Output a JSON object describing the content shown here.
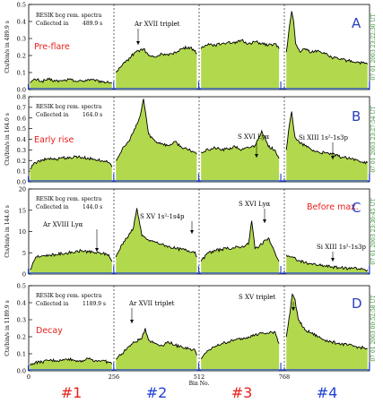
{
  "figure": {
    "ylabel_template": "Cts/bin/s in {t} s",
    "xlabel": "Bin No.",
    "bottom_ticks": [
      "0",
      "256",
      "512",
      "768"
    ],
    "quarter_labels": [
      "#1",
      "#2",
      "#3",
      "#4"
    ],
    "colors": {
      "fill": "#b2d94e",
      "line": "#000000",
      "blue": "#1f3fd6",
      "red": "#e8201c",
      "panel_letter": "#2a3fbf",
      "right_label": "#2a8a2a"
    }
  },
  "chart_data": [
    {
      "type": "area",
      "panel": "A",
      "phase": "Pre-flare",
      "info_line1": "RESIK bcg rem. spectra",
      "info_line2": "Collected in",
      "collected_s": "489.9 s",
      "right_label": "07 01 2003    23:22:30 UT",
      "ylim": [
        0,
        0.5
      ],
      "yticks": [
        "0.0",
        "0.1",
        "0.2",
        "0.3",
        "0.4",
        "0.5"
      ],
      "xlim": [
        0,
        1024
      ],
      "xticks": [
        0,
        256,
        512,
        768
      ],
      "annotations": [
        {
          "text": "Ar XVII triplet"
        }
      ],
      "segments": [
        {
          "x": [
            4,
            20,
            40,
            60,
            80,
            100,
            120,
            140,
            160,
            180,
            200,
            220,
            240,
            250
          ],
          "y": [
            0.04,
            0.06,
            0.05,
            0.06,
            0.05,
            0.05,
            0.06,
            0.05,
            0.05,
            0.06,
            0.05,
            0.05,
            0.04,
            0.04
          ]
        },
        {
          "x": [
            262,
            290,
            320,
            345,
            360,
            380,
            400,
            420,
            440,
            460,
            480,
            500,
            505
          ],
          "y": [
            0.1,
            0.16,
            0.22,
            0.24,
            0.2,
            0.19,
            0.21,
            0.2,
            0.22,
            0.24,
            0.25,
            0.23,
            0.21
          ]
        },
        {
          "x": [
            518,
            540,
            560,
            580,
            600,
            620,
            640,
            660,
            680,
            700,
            720,
            740,
            752
          ],
          "y": [
            0.24,
            0.27,
            0.26,
            0.27,
            0.28,
            0.27,
            0.29,
            0.27,
            0.28,
            0.27,
            0.26,
            0.27,
            0.24
          ]
        },
        {
          "x": [
            774,
            784,
            790,
            796,
            802,
            815,
            830,
            850,
            870,
            890,
            910,
            930,
            960,
            990,
            1018
          ],
          "y": [
            0.22,
            0.38,
            0.46,
            0.4,
            0.27,
            0.22,
            0.24,
            0.22,
            0.23,
            0.21,
            0.19,
            0.18,
            0.17,
            0.16,
            0.15
          ]
        }
      ]
    },
    {
      "type": "area",
      "panel": "B",
      "phase": "Early rise",
      "info_line1": "RESIK bcg rem. spectra",
      "info_line2": "Collected in",
      "collected_s": "164.0 s",
      "right_label": "07 01 2003    23:27:54 UT",
      "ylim": [
        0,
        0.8
      ],
      "yticks": [
        "0.0",
        "0.1",
        "0.2",
        "0.3",
        "0.4",
        "0.5",
        "0.6",
        "0.7",
        "0.8"
      ],
      "xlim": [
        0,
        1024
      ],
      "xticks": [
        0,
        256,
        512,
        768
      ],
      "annotations": [
        {
          "text": "S XVI Lyα"
        },
        {
          "text": "Si XIII 1s²-1s3p"
        }
      ],
      "segments": [
        {
          "x": [
            4,
            20,
            40,
            60,
            80,
            100,
            120,
            140,
            160,
            180,
            200,
            220,
            240,
            250
          ],
          "y": [
            0.12,
            0.18,
            0.2,
            0.22,
            0.21,
            0.23,
            0.22,
            0.24,
            0.23,
            0.22,
            0.21,
            0.2,
            0.18,
            0.14
          ]
        },
        {
          "x": [
            262,
            280,
            300,
            320,
            335,
            345,
            360,
            380,
            400,
            420,
            440,
            460,
            480,
            500,
            505
          ],
          "y": [
            0.2,
            0.3,
            0.38,
            0.5,
            0.62,
            0.78,
            0.45,
            0.38,
            0.36,
            0.34,
            0.38,
            0.32,
            0.3,
            0.28,
            0.26
          ]
        },
        {
          "x": [
            518,
            540,
            560,
            580,
            600,
            620,
            640,
            660,
            680,
            700,
            720,
            740,
            752
          ],
          "y": [
            0.28,
            0.3,
            0.32,
            0.3,
            0.31,
            0.33,
            0.3,
            0.32,
            0.34,
            0.48,
            0.33,
            0.3,
            0.22
          ]
        },
        {
          "x": [
            774,
            784,
            790,
            800,
            815,
            830,
            850,
            870,
            890,
            910,
            930,
            960,
            990,
            1018
          ],
          "y": [
            0.3,
            0.55,
            0.66,
            0.42,
            0.36,
            0.34,
            0.3,
            0.28,
            0.27,
            0.26,
            0.24,
            0.22,
            0.2,
            0.18
          ]
        }
      ]
    },
    {
      "type": "area",
      "panel": "C",
      "phase": "Before max.",
      "info_line1": "RESIK bcg rem. spectra",
      "info_line2": "Collected in",
      "collected_s": "144.0 s",
      "right_label": "07 01 2003    23:30:45 UT",
      "ylim": [
        0,
        20
      ],
      "yticks": [
        "0",
        "5",
        "10",
        "15",
        "20"
      ],
      "xlim": [
        0,
        1024
      ],
      "xticks": [
        0,
        256,
        512,
        768
      ],
      "annotations": [
        {
          "text": "Ar XVIII Lyα"
        },
        {
          "text": "S XV 1s²-1s4p"
        },
        {
          "text": "S XVI Lyα"
        },
        {
          "text": "Si XIII 1s²-1s3p"
        }
      ],
      "segments": [
        {
          "x": [
            4,
            15,
            25,
            40,
            60,
            80,
            100,
            120,
            140,
            160,
            180,
            200,
            220,
            240,
            250
          ],
          "y": [
            1.0,
            3.0,
            4.0,
            4.3,
            4.5,
            4.6,
            4.8,
            5.0,
            5.2,
            5.5,
            5.2,
            5.0,
            4.8,
            4.6,
            3.0
          ]
        },
        {
          "x": [
            262,
            280,
            300,
            315,
            325,
            340,
            360,
            380,
            400,
            420,
            440,
            460,
            480,
            500,
            505
          ],
          "y": [
            4.0,
            7.0,
            9.0,
            11.0,
            15.5,
            9.0,
            8.0,
            7.5,
            7.0,
            6.5,
            6.0,
            5.8,
            5.5,
            5.2,
            4.0
          ]
        },
        {
          "x": [
            518,
            540,
            560,
            580,
            600,
            620,
            640,
            660,
            670,
            680,
            700,
            720,
            740,
            752
          ],
          "y": [
            3.0,
            5.0,
            5.5,
            5.8,
            6.0,
            6.2,
            6.5,
            7.0,
            12.5,
            6.0,
            7.0,
            8.5,
            5.0,
            3.0
          ]
        },
        {
          "x": [
            774,
            790,
            810,
            830,
            850,
            870,
            890,
            910,
            930,
            960,
            980,
            990,
            1018
          ],
          "y": [
            4.5,
            4.0,
            3.2,
            2.7,
            2.4,
            2.1,
            1.9,
            1.7,
            1.5,
            1.3,
            1.6,
            1.2,
            1.0
          ]
        }
      ]
    },
    {
      "type": "area",
      "panel": "D",
      "phase": "Decay",
      "info_line1": "RESIK bcg rem. spectra",
      "info_line2": "Collected in",
      "collected_s": "1189.9 s",
      "right_label": "07 01 2003    00:52:58 UT",
      "ylim": [
        0,
        0.5
      ],
      "yticks": [
        "0.0",
        "0.1",
        "0.2",
        "0.3",
        "0.4",
        "0.5"
      ],
      "xlim": [
        0,
        1024
      ],
      "xticks": [
        0,
        256,
        512,
        768
      ],
      "annotations": [
        {
          "text": "Ar XVII triplet"
        },
        {
          "text": "S XV triplet"
        }
      ],
      "segments": [
        {
          "x": [
            4,
            20,
            40,
            60,
            80,
            100,
            120,
            140,
            160,
            180,
            200,
            220,
            240,
            250
          ],
          "y": [
            0.03,
            0.05,
            0.05,
            0.06,
            0.06,
            0.06,
            0.07,
            0.06,
            0.06,
            0.07,
            0.06,
            0.06,
            0.05,
            0.04
          ]
        },
        {
          "x": [
            262,
            280,
            300,
            320,
            340,
            350,
            360,
            380,
            400,
            420,
            440,
            460,
            480,
            500,
            505
          ],
          "y": [
            0.07,
            0.1,
            0.14,
            0.17,
            0.19,
            0.25,
            0.18,
            0.16,
            0.15,
            0.17,
            0.15,
            0.14,
            0.13,
            0.12,
            0.09
          ]
        },
        {
          "x": [
            518,
            540,
            560,
            580,
            600,
            620,
            640,
            660,
            680,
            700,
            720,
            740,
            752
          ],
          "y": [
            0.07,
            0.12,
            0.14,
            0.16,
            0.17,
            0.18,
            0.19,
            0.2,
            0.21,
            0.22,
            0.22,
            0.23,
            0.16
          ]
        },
        {
          "x": [
            774,
            785,
            792,
            800,
            810,
            830,
            850,
            870,
            890,
            910,
            930,
            960,
            990,
            1018
          ],
          "y": [
            0.2,
            0.34,
            0.45,
            0.42,
            0.3,
            0.24,
            0.22,
            0.2,
            0.18,
            0.17,
            0.16,
            0.15,
            0.14,
            0.13
          ]
        }
      ]
    }
  ]
}
